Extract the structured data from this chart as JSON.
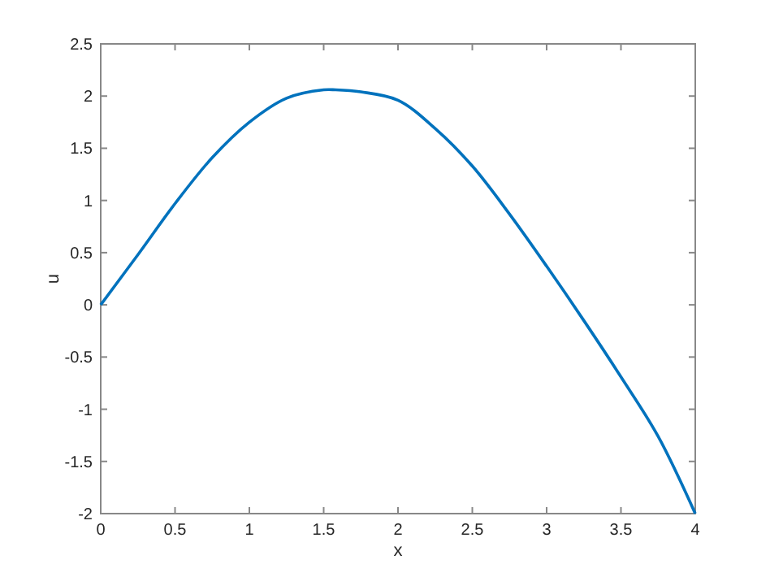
{
  "chart_data": {
    "type": "line",
    "xlabel": "x",
    "ylabel": "u",
    "xlim": [
      0,
      4
    ],
    "ylim": [
      -2,
      2.5
    ],
    "xticks": [
      0,
      0.5,
      1,
      1.5,
      2,
      2.5,
      3,
      3.5,
      4
    ],
    "yticks": [
      -2,
      -1.5,
      -1,
      -0.5,
      0,
      0.5,
      1,
      1.5,
      2,
      2.5
    ],
    "series": [
      {
        "color": "#0072bd",
        "x": [
          0,
          0.25,
          0.5,
          0.75,
          1,
          1.25,
          1.5,
          1.58,
          1.75,
          2,
          2.25,
          2.5,
          2.75,
          3,
          3.25,
          3.5,
          3.75,
          4
        ],
        "values": [
          0,
          0.48,
          0.97,
          1.41,
          1.75,
          1.98,
          2.06,
          2.06,
          2.04,
          1.96,
          1.69,
          1.33,
          0.87,
          0.37,
          -0.15,
          -0.69,
          -1.26,
          -2
        ]
      }
    ],
    "grid": false,
    "marker": "none",
    "line_style": "solid"
  }
}
